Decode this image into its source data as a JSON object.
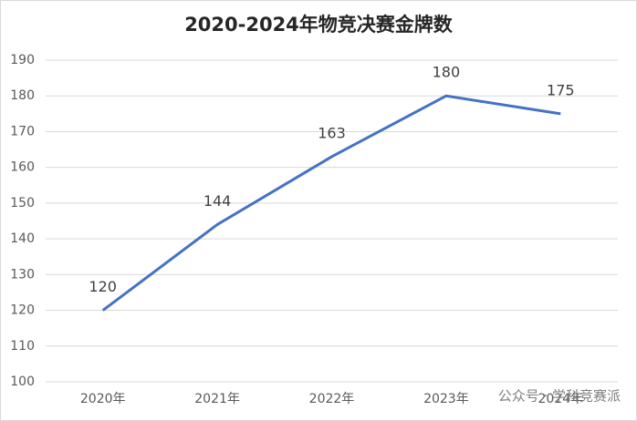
{
  "chart_data": {
    "type": "line",
    "title": "2020-2024年物竞决赛金牌数",
    "categories": [
      "2020年",
      "2021年",
      "2022年",
      "2023年",
      "2024年"
    ],
    "values": [
      120,
      144,
      163,
      180,
      175
    ],
    "color": "#4472c4",
    "ylim": [
      100,
      190
    ],
    "yticks": [
      100,
      110,
      120,
      130,
      140,
      150,
      160,
      170,
      180,
      190
    ],
    "grid": true
  },
  "watermark": "公众号 · 学科竞赛派"
}
